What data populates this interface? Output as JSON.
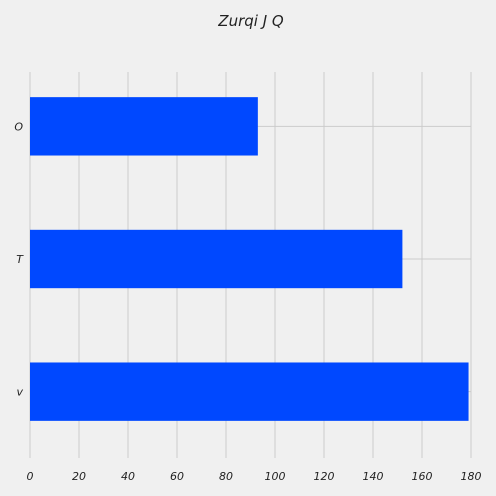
{
  "chart_data": {
    "type": "bar",
    "orientation": "horizontal",
    "title": "Zurqi J Q",
    "xlabel": "",
    "ylabel": "",
    "categories": [
      "O",
      "T",
      "v"
    ],
    "values": [
      93,
      152,
      179
    ],
    "xlim": [
      0,
      180
    ],
    "xticks": [
      0,
      20,
      40,
      60,
      80,
      100,
      120,
      140,
      160,
      180
    ],
    "grid": true,
    "bar_color": "#0048ff",
    "background_color": "#f0f0f0",
    "grid_color": "#cbcbcb"
  }
}
